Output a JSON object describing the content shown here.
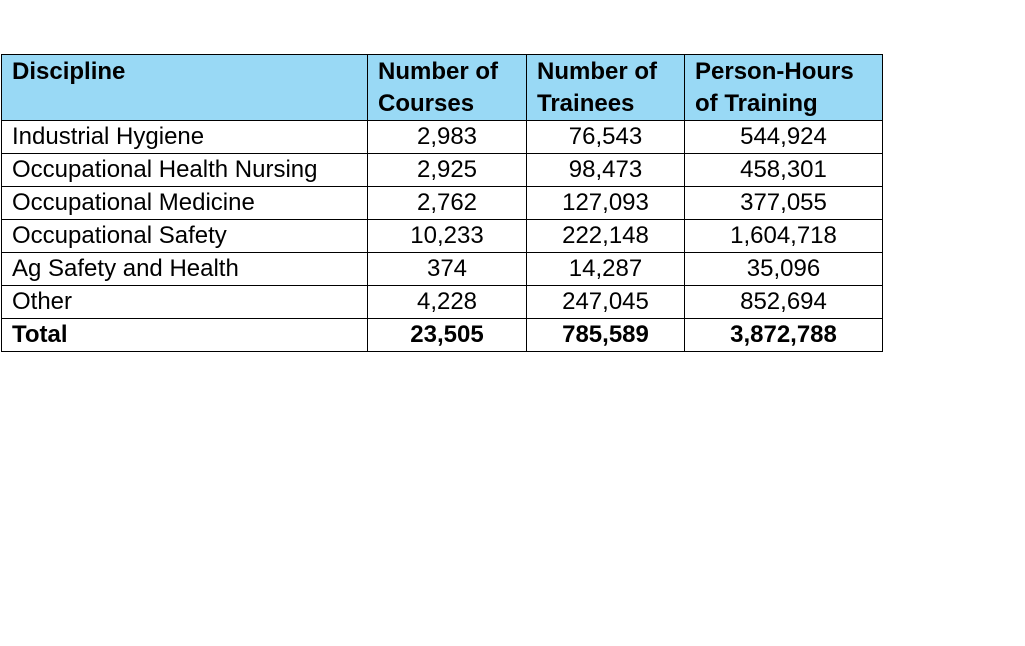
{
  "table": {
    "headers": [
      "Discipline",
      "Number of Courses",
      "Number of Trainees",
      "Person-Hours of Training"
    ],
    "rows": [
      [
        "Industrial Hygiene",
        "2,983",
        "76,543",
        "544,924"
      ],
      [
        "Occupational Health Nursing",
        "2,925",
        "98,473",
        "458,301"
      ],
      [
        "Occupational Medicine",
        "2,762",
        "127,093",
        "377,055"
      ],
      [
        "Occupational Safety",
        "10,233",
        "222,148",
        "1,604,718"
      ],
      [
        "Ag Safety and Health",
        "374",
        "14,287",
        "35,096"
      ],
      [
        "Other",
        "4,228",
        "247,045",
        "852,694"
      ]
    ],
    "total": [
      "Total",
      "23,505",
      "785,589",
      "3,872,788"
    ]
  },
  "colors": {
    "header_background": "#99d9f5",
    "border": "#000000"
  }
}
